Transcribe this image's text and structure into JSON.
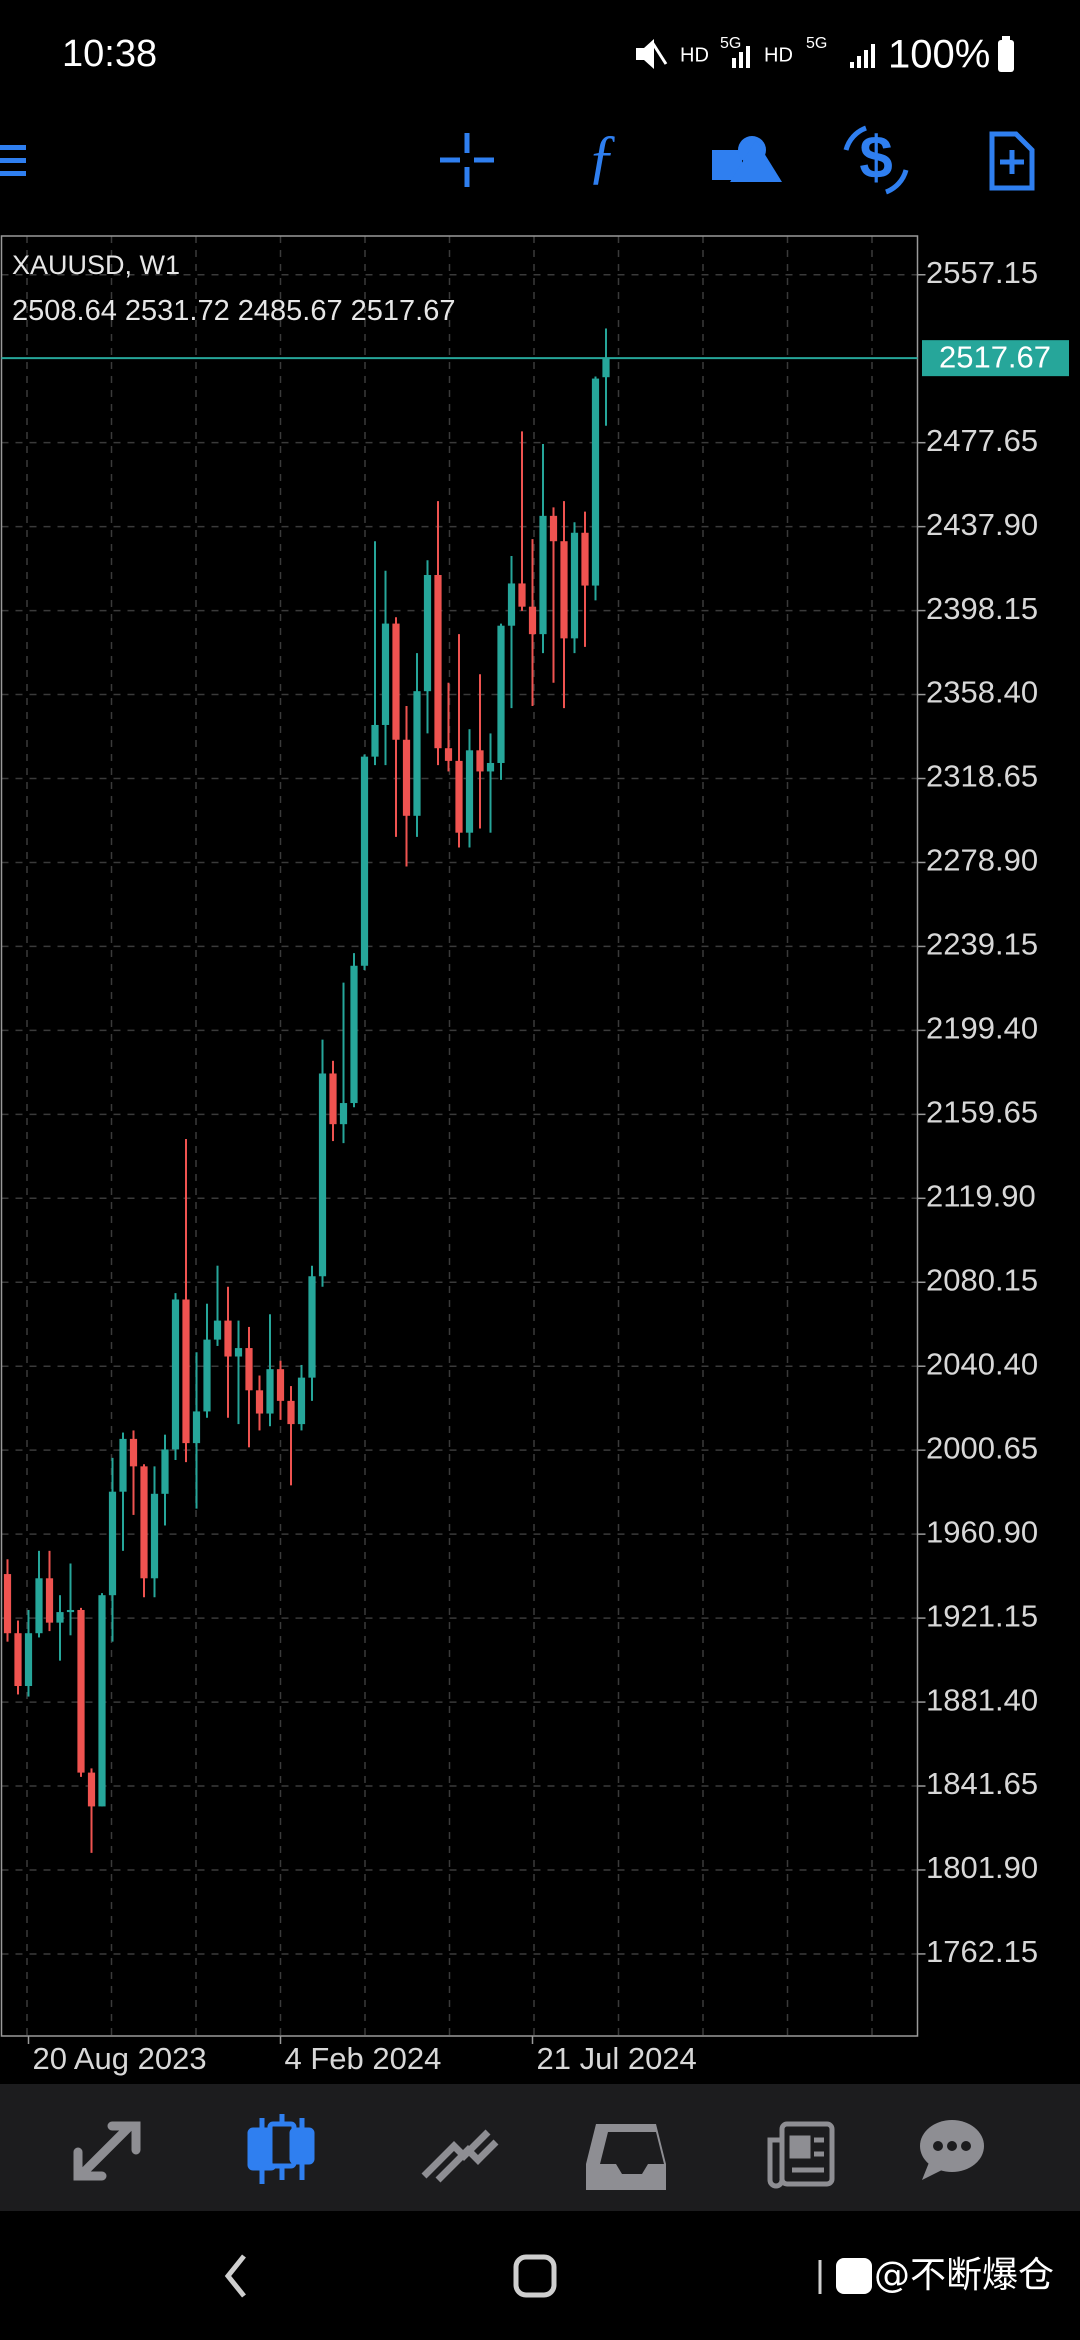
{
  "status_bar": {
    "time": "10:38",
    "battery": "100%"
  },
  "chart_data": {
    "type": "candlestick",
    "title": "XAUUSD, W1",
    "categories": [
      null,
      null,
      "20 Aug 2023",
      null,
      null,
      null,
      null,
      null,
      null,
      null,
      null,
      null,
      null,
      null,
      null,
      null,
      null,
      null,
      null,
      null,
      null,
      null,
      null,
      null,
      null,
      null,
      "4 Feb 2024",
      null,
      null,
      null,
      null,
      null,
      null,
      null,
      null,
      null,
      null,
      null,
      null,
      null,
      null,
      null,
      null,
      null,
      null,
      null,
      null,
      null,
      null,
      null,
      "21 Jul 2024",
      null,
      null,
      null,
      null,
      null,
      null,
      null
    ],
    "open": [
      1942,
      1914,
      1889,
      1914,
      1940,
      1919,
      1924,
      1925,
      1848,
      1832,
      1932,
      1981,
      2006,
      1993,
      1940,
      1980,
      2001,
      2072,
      2004,
      2019,
      2053,
      2062,
      2045,
      2049,
      2029,
      2018,
      2039,
      2024,
      2013,
      2035,
      2083,
      2179,
      2155,
      2165,
      2230,
      2329,
      2344,
      2392,
      2337,
      2301,
      2360,
      2415,
      2333,
      2327,
      2293,
      2332,
      2322,
      2326,
      2391,
      2411,
      2400,
      2387,
      2443,
      2431,
      2385,
      2435,
      2410,
      2508.64
    ],
    "high": [
      1949,
      1920,
      1925,
      1953,
      1953,
      1932,
      1947,
      1926,
      1850,
      1933,
      1997,
      2009,
      2010,
      1994,
      1993,
      2008,
      2075,
      2148,
      2047,
      2070,
      2088,
      2078,
      2062,
      2059,
      2036,
      2065,
      2043,
      2031,
      2041,
      2088,
      2195,
      2185,
      2222,
      2236,
      2330,
      2431,
      2417,
      2395,
      2353,
      2378,
      2422,
      2450,
      2364,
      2387,
      2342,
      2368,
      2340,
      2392,
      2424,
      2483,
      2432,
      2477,
      2447,
      2450,
      2440,
      2445,
      2509,
      2531.72
    ],
    "low": [
      1910,
      1885,
      1884,
      1912,
      1915,
      1901,
      1913,
      1846,
      1810,
      1832,
      1910,
      1953,
      1970,
      1931,
      1931,
      1965,
      1996,
      1995,
      1973,
      2016,
      2050,
      2016,
      2013,
      2002,
      2010,
      2012,
      2015,
      1984,
      2010,
      2024,
      2078,
      2147,
      2146,
      2163,
      2228,
      2325,
      2325,
      2291,
      2277,
      2291,
      2340,
      2325,
      2322,
      2286,
      2286,
      2295,
      2293,
      2318,
      2352,
      2398,
      2353,
      2378,
      2364,
      2352,
      2378,
      2381,
      2403,
      2485.67
    ],
    "close": [
      1914,
      1889,
      1914,
      1940,
      1919,
      1924,
      1925,
      1848,
      1832,
      1932,
      1981,
      2006,
      1993,
      1940,
      1980,
      2001,
      2072,
      2004,
      2019,
      2053,
      2062,
      2045,
      2049,
      2029,
      2018,
      2039,
      2024,
      2013,
      2035,
      2083,
      2179,
      2155,
      2165,
      2230,
      2329,
      2344,
      2392,
      2337,
      2301,
      2360,
      2415,
      2333,
      2327,
      2293,
      2332,
      2322,
      2326,
      2391,
      2411,
      2400,
      2387,
      2443,
      2431,
      2385,
      2435,
      2410,
      2508,
      2517.67
    ],
    "up_color": "#26a69a",
    "down_color": "#ef5350",
    "ylim": [
      1723.3,
      2575.5
    ],
    "yticks": [
      2557.15,
      2477.65,
      {
        "value": 2437.9,
        "label": "2437.90"
      },
      2398.15,
      {
        "value": 2358.4,
        "label": "2358.40"
      },
      2318.65,
      {
        "value": 2278.9,
        "label": "2278.90"
      },
      2239.15,
      {
        "value": 2199.4,
        "label": "2199.40"
      },
      2159.65,
      {
        "value": 2119.9,
        "label": "2119.90"
      },
      2080.15,
      {
        "value": 2040.4,
        "label": "2040.40"
      },
      2000.65,
      {
        "value": 1960.9,
        "label": "1960.90"
      },
      1921.15,
      {
        "value": 1881.4,
        "label": "1881.40"
      },
      1841.65,
      {
        "value": 1801.9,
        "label": "1801.90"
      },
      1762.15
    ],
    "grid": true
  },
  "watermark": "@不断爆仓"
}
